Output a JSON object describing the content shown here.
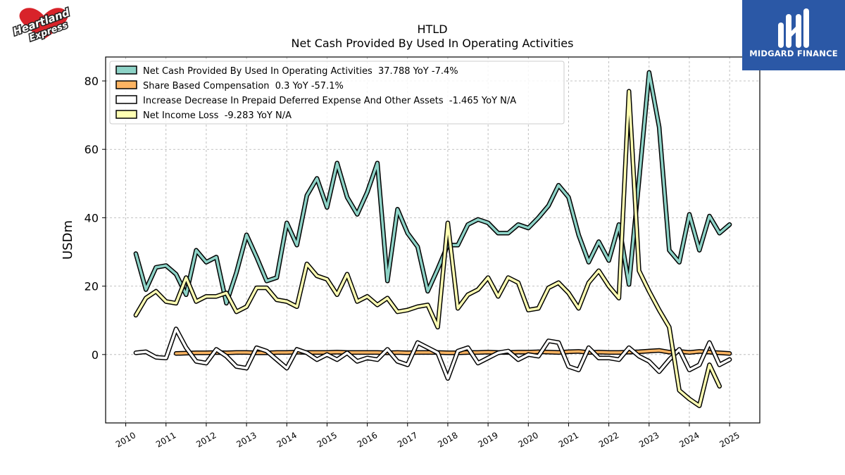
{
  "header": {
    "ticker": "HTLD",
    "title": "Net Cash Provided By Used In Operating Activities"
  },
  "logos": {
    "left_brand": "Heartland Express",
    "right_brand": "MIDGARD FINANCE"
  },
  "chart_data": {
    "type": "line",
    "title": "HTLD",
    "subtitle": "Net Cash Provided By Used In Operating Activities",
    "ylabel": "USDm",
    "xlabel": "",
    "xlim": [
      2009.5,
      2025.75
    ],
    "ylim": [
      -20,
      87
    ],
    "x_ticks": [
      "2010",
      "2011",
      "2012",
      "2013",
      "2014",
      "2015",
      "2016",
      "2017",
      "2018",
      "2019",
      "2020",
      "2021",
      "2022",
      "2023",
      "2024",
      "2025"
    ],
    "y_ticks": [
      0,
      20,
      40,
      60,
      80
    ],
    "grid": true,
    "legend_position": "top-left",
    "series": [
      {
        "name": "Net Cash Provided By Used In Operating Activities  37.788 YoY -7.4%",
        "color": "#8dd3c7",
        "x": [
          2010.25,
          2010.5,
          2010.75,
          2011.0,
          2011.25,
          2011.5,
          2011.75,
          2012.0,
          2012.25,
          2012.5,
          2012.75,
          2013.0,
          2013.25,
          2013.5,
          2013.75,
          2014.0,
          2014.25,
          2014.5,
          2014.75,
          2015.0,
          2015.25,
          2015.5,
          2015.75,
          2016.0,
          2016.25,
          2016.5,
          2016.75,
          2017.0,
          2017.25,
          2017.5,
          2017.75,
          2018.0,
          2018.25,
          2018.5,
          2018.75,
          2019.0,
          2019.25,
          2019.5,
          2019.75,
          2020.0,
          2020.25,
          2020.5,
          2020.75,
          2021.0,
          2021.25,
          2021.5,
          2021.75,
          2022.0,
          2022.25,
          2022.5,
          2022.75,
          2023.0,
          2023.25,
          2023.5,
          2023.75,
          2024.0,
          2024.25,
          2024.5,
          2024.75,
          2025.0
        ],
        "y": [
          29.5,
          19.0,
          25.5,
          26.0,
          23.5,
          17.5,
          30.5,
          27.0,
          28.5,
          15.0,
          24.0,
          35.0,
          28.5,
          21.5,
          22.5,
          38.5,
          32.0,
          46.5,
          51.5,
          43.0,
          56.0,
          46.0,
          41.0,
          47.5,
          56.0,
          21.5,
          42.5,
          35.5,
          31.5,
          18.5,
          25.0,
          32.0,
          32.0,
          38.0,
          39.5,
          38.5,
          35.5,
          35.5,
          38.0,
          37.0,
          40.0,
          43.5,
          49.5,
          46.0,
          35.0,
          27.0,
          33.0,
          27.5,
          38.0,
          20.5,
          51.0,
          82.5,
          66.5,
          30.5,
          27.0,
          41.0,
          30.5,
          40.5,
          35.5,
          38.0
        ]
      },
      {
        "name": "Share Based Compensation  0.3 YoY -57.1%",
        "color": "#fdb462",
        "x": [
          2011.25,
          2011.5,
          2011.75,
          2012.0,
          2012.25,
          2012.5,
          2012.75,
          2013.0,
          2013.25,
          2013.5,
          2013.75,
          2014.0,
          2014.25,
          2014.5,
          2014.75,
          2015.0,
          2015.25,
          2015.5,
          2015.75,
          2016.0,
          2016.25,
          2016.5,
          2016.75,
          2017.0,
          2017.25,
          2017.5,
          2017.75,
          2018.0,
          2018.25,
          2018.5,
          2018.75,
          2019.0,
          2019.25,
          2019.5,
          2019.75,
          2020.0,
          2020.25,
          2020.5,
          2020.75,
          2021.0,
          2021.25,
          2021.5,
          2021.75,
          2022.0,
          2022.25,
          2022.5,
          2022.75,
          2023.0,
          2023.25,
          2023.5,
          2023.75,
          2024.0,
          2024.25,
          2024.5,
          2024.75,
          2025.0
        ],
        "y": [
          0.3,
          0.4,
          0.5,
          0.5,
          0.6,
          0.5,
          0.6,
          0.6,
          0.5,
          0.5,
          0.6,
          0.6,
          0.7,
          0.6,
          0.6,
          0.6,
          0.7,
          0.6,
          0.6,
          0.6,
          0.6,
          0.5,
          0.6,
          0.5,
          0.6,
          0.6,
          0.6,
          0.5,
          0.5,
          0.6,
          0.6,
          0.7,
          0.6,
          0.6,
          0.7,
          0.7,
          0.8,
          0.7,
          0.6,
          0.8,
          0.9,
          0.6,
          0.7,
          0.6,
          0.6,
          0.7,
          0.8,
          1.0,
          1.2,
          0.7,
          0.9,
          0.6,
          0.9,
          0.7,
          0.5,
          0.3
        ]
      },
      {
        "name": "Increase Decrease In Prepaid Deferred Expense And Other Assets  -1.465 YoY N/A",
        "color": "#ffffff",
        "x": [
          2010.25,
          2010.5,
          2010.75,
          2011.0,
          2011.25,
          2011.5,
          2011.75,
          2012.0,
          2012.25,
          2012.5,
          2012.75,
          2013.0,
          2013.25,
          2013.5,
          2013.75,
          2014.0,
          2014.25,
          2014.5,
          2014.75,
          2015.0,
          2015.25,
          2015.5,
          2015.75,
          2016.0,
          2016.25,
          2016.5,
          2016.75,
          2017.0,
          2017.25,
          2017.5,
          2017.75,
          2018.0,
          2018.25,
          2018.5,
          2018.75,
          2019.0,
          2019.25,
          2019.5,
          2019.75,
          2020.0,
          2020.25,
          2020.5,
          2020.75,
          2021.0,
          2021.25,
          2021.5,
          2021.75,
          2022.0,
          2022.25,
          2022.5,
          2022.75,
          2023.0,
          2023.25,
          2023.5,
          2023.75,
          2024.0,
          2024.25,
          2024.5,
          2024.75,
          2025.0
        ],
        "y": [
          0.5,
          0.8,
          -0.8,
          -1.0,
          7.5,
          2.0,
          -2.0,
          -2.5,
          1.5,
          -0.5,
          -3.5,
          -4.0,
          2.0,
          1.0,
          -1.5,
          -4.0,
          1.5,
          0.5,
          -1.5,
          0.0,
          -1.5,
          0.5,
          -2.0,
          -1.0,
          -1.5,
          1.5,
          -2.0,
          -3.0,
          3.5,
          2.0,
          0.5,
          -7.0,
          1.0,
          2.0,
          -2.5,
          -1.0,
          0.5,
          1.0,
          -1.5,
          0.0,
          -0.5,
          4.0,
          3.5,
          -3.5,
          -4.5,
          2.0,
          -1.0,
          -1.0,
          -1.5,
          2.0,
          -0.5,
          -2.0,
          -5.0,
          -1.5,
          1.5,
          -4.5,
          -3.0,
          3.5,
          -3.0,
          -1.465
        ]
      },
      {
        "name": "Net Income Loss  -9.283 YoY N/A",
        "color": "#ffffb3",
        "x": [
          2010.25,
          2010.5,
          2010.75,
          2011.0,
          2011.25,
          2011.5,
          2011.75,
          2012.0,
          2012.25,
          2012.5,
          2012.75,
          2013.0,
          2013.25,
          2013.5,
          2013.75,
          2014.0,
          2014.25,
          2014.5,
          2014.75,
          2015.0,
          2015.25,
          2015.5,
          2015.75,
          2016.0,
          2016.25,
          2016.5,
          2016.75,
          2017.0,
          2017.25,
          2017.5,
          2017.75,
          2018.0,
          2018.25,
          2018.5,
          2018.75,
          2019.0,
          2019.25,
          2019.5,
          2019.75,
          2020.0,
          2020.25,
          2020.5,
          2020.75,
          2021.0,
          2021.25,
          2021.5,
          2021.75,
          2022.0,
          2022.25,
          2022.5,
          2022.75,
          2023.0,
          2023.25,
          2023.5,
          2023.75,
          2024.0,
          2024.25,
          2024.5,
          2024.75
        ],
        "y": [
          11.5,
          16.5,
          18.5,
          15.5,
          15.0,
          22.5,
          15.5,
          17.0,
          17.0,
          18.0,
          12.5,
          14.0,
          19.5,
          19.5,
          16.0,
          15.5,
          14.0,
          26.5,
          23.0,
          22.0,
          17.5,
          23.5,
          15.5,
          17.0,
          14.5,
          16.5,
          12.5,
          13.0,
          14.0,
          14.5,
          8.0,
          38.5,
          13.5,
          17.5,
          19.0,
          22.5,
          17.0,
          22.5,
          21.0,
          13.0,
          13.5,
          19.5,
          21.0,
          18.0,
          13.5,
          21.0,
          24.5,
          20.0,
          16.5,
          77.0,
          24.5,
          18.5,
          13.0,
          8.0,
          -10.5,
          -13.0,
          -15.0,
          -3.0,
          -9.283
        ]
      }
    ]
  }
}
